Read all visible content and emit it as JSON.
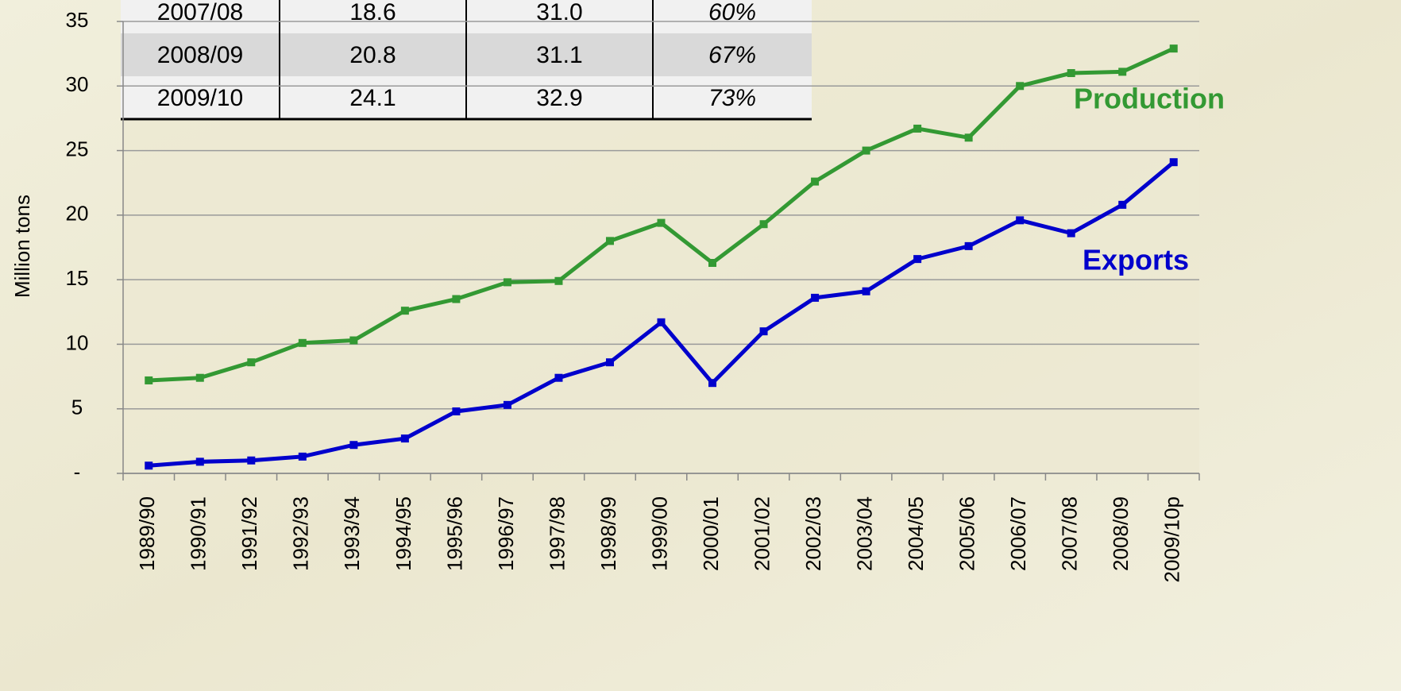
{
  "chart_data": {
    "type": "line",
    "ylabel": "Million tons",
    "categories": [
      "1989/90",
      "1990/91",
      "1991/92",
      "1992/93",
      "1993/94",
      "1994/95",
      "1995/96",
      "1996/97",
      "1997/98",
      "1998/99",
      "1999/00",
      "2000/01",
      "2001/02",
      "2002/03",
      "2003/04",
      "2004/05",
      "2005/06",
      "2006/07",
      "2007/08",
      "2008/09",
      "2009/10p"
    ],
    "series": [
      {
        "name": "Production",
        "color": "#339933",
        "values": [
          7.2,
          7.4,
          8.6,
          10.1,
          10.3,
          12.6,
          13.5,
          14.8,
          14.9,
          18.0,
          19.4,
          16.3,
          19.3,
          22.6,
          25.0,
          26.7,
          26.0,
          30.0,
          31.0,
          31.1,
          32.9
        ]
      },
      {
        "name": "Exports",
        "color": "#0000cc",
        "values": [
          0.6,
          0.9,
          1.0,
          1.3,
          2.2,
          2.7,
          4.8,
          5.3,
          7.4,
          8.6,
          11.7,
          7.0,
          11.0,
          13.6,
          14.1,
          16.6,
          17.6,
          19.6,
          18.6,
          20.8,
          24.1
        ]
      }
    ],
    "ylim": [
      0,
      35
    ],
    "yticks": [
      {
        "value": 0,
        "label": "-"
      },
      5,
      10,
      15,
      20,
      25,
      30,
      35
    ],
    "grid": true
  },
  "table": {
    "rows": [
      [
        "2007/08",
        "18.6",
        "31.0",
        "60%"
      ],
      [
        "2008/09",
        "20.8",
        "31.1",
        "67%"
      ],
      [
        "2009/10",
        "24.1",
        "32.9",
        "73%"
      ]
    ]
  }
}
